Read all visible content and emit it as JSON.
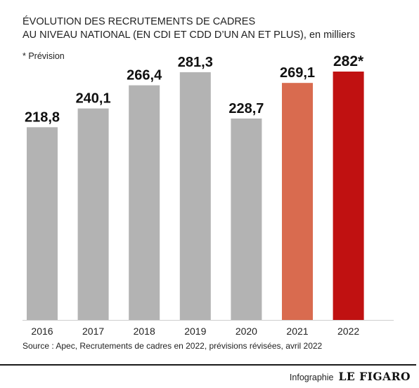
{
  "header": {
    "title_line1": "ÉVOLUTION DES RECRUTEMENTS DE CADRES",
    "title_line2": "AU NIVEAU NATIONAL (EN CDI ET CDD D’UN AN ET PLUS)",
    "unit": ", en milliers",
    "note": "* Prévision"
  },
  "chart_data": {
    "type": "bar",
    "categories": [
      "2016",
      "2017",
      "2018",
      "2019",
      "2020",
      "2021",
      "2022"
    ],
    "values": [
      218.8,
      240.1,
      266.4,
      281.3,
      228.7,
      269.1,
      282
    ],
    "value_labels": [
      "218,8",
      "240,1",
      "266,4",
      "281,3",
      "228,7",
      "269,1",
      "282*"
    ],
    "colors": [
      "#b3b3b3",
      "#b3b3b3",
      "#b3b3b3",
      "#b3b3b3",
      "#b3b3b3",
      "#d96b4f",
      "#c01111"
    ],
    "ylim": [
      0,
      282
    ],
    "grid": false,
    "xlabel": "",
    "ylabel": ""
  },
  "footer": {
    "source": "Source : Apec, Recrutements de cadres en 2022, prévisions révisées, avril 2022",
    "credit_label": "Infographie",
    "credit_logo": "LE FIGARO"
  }
}
